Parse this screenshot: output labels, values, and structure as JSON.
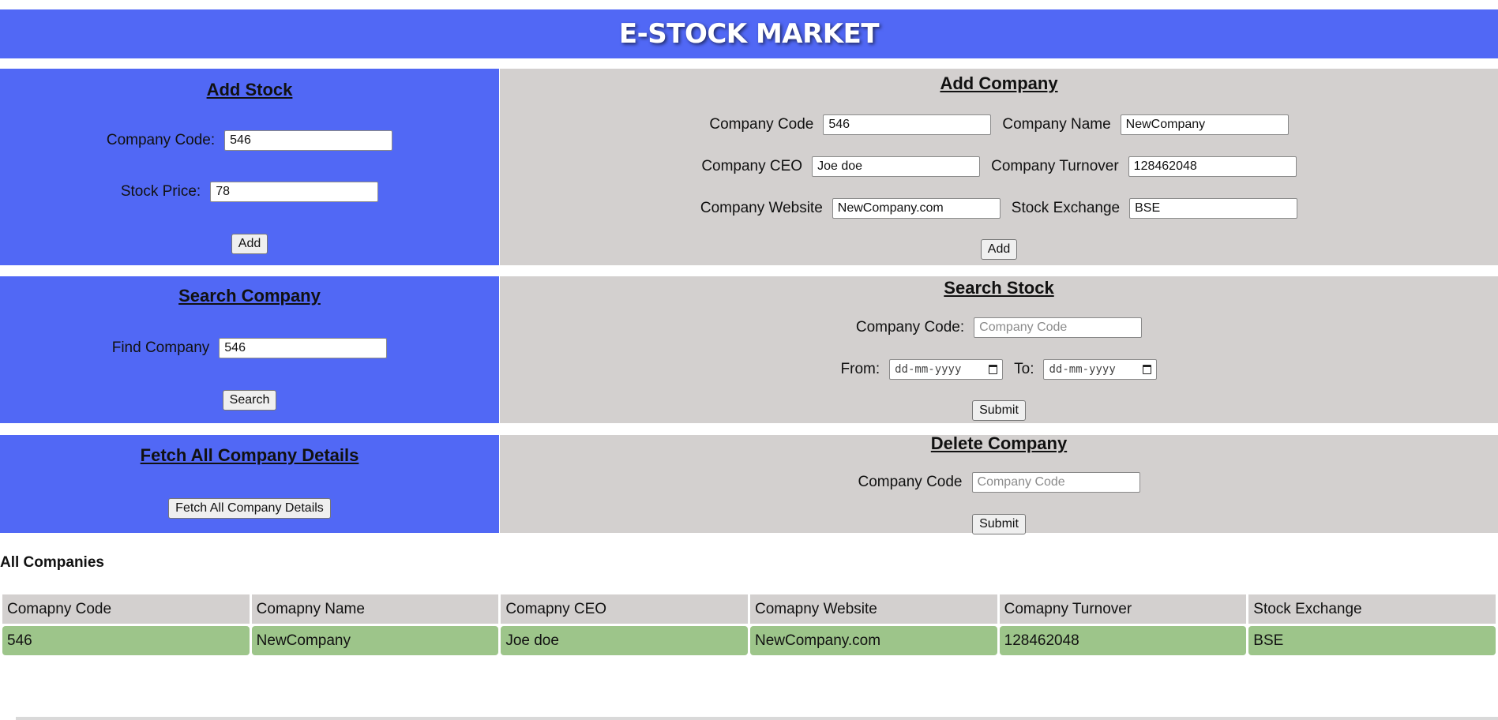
{
  "header": {
    "title": "E-STOCK MARKET"
  },
  "add_stock": {
    "title": "Add Stock",
    "company_code_label": "Company Code:",
    "company_code_value": "546",
    "stock_price_label": "Stock Price:",
    "stock_price_value": "78",
    "add_label": "Add"
  },
  "add_company": {
    "title": "Add Company",
    "code_label": "Company Code",
    "code_value": "546",
    "name_label": "Company Name",
    "name_value": "NewCompany",
    "ceo_label": "Company CEO",
    "ceo_value": "Joe doe",
    "turnover_label": "Company Turnover",
    "turnover_value": "128462048",
    "website_label": "Company Website",
    "website_value": "NewCompany.com",
    "exchange_label": "Stock Exchange",
    "exchange_value": "BSE",
    "add_label": "Add"
  },
  "search_company": {
    "title": "Search Company",
    "find_label": "Find Company",
    "find_value": "546",
    "search_label": "Search"
  },
  "search_stock": {
    "title": "Search Stock",
    "code_label": "Company Code:",
    "code_placeholder": "Company Code",
    "from_label": "From:",
    "to_label": "To:",
    "date_placeholder": "dd-mm-yyyy",
    "submit_label": "Submit"
  },
  "fetch_all": {
    "title": "Fetch All Company Details",
    "button_label": "Fetch All Company Details"
  },
  "delete_company": {
    "title": "Delete Company",
    "code_label": "Company Code",
    "code_placeholder": "Company Code",
    "submit_label": "Submit"
  },
  "all_companies": {
    "title": "All Companies",
    "columns": [
      "Comapny Code",
      "Comapny Name",
      "Comapny CEO",
      "Comapny Website",
      "Comapny Turnover",
      "Stock Exchange"
    ],
    "rows": [
      [
        "546",
        "NewCompany",
        "Joe doe",
        "NewCompany.com",
        "128462048",
        "BSE"
      ]
    ]
  },
  "colors": {
    "blue_panel": "#5168f5",
    "grey_panel": "#d3d0cf",
    "row_green": "#9dc58a"
  }
}
